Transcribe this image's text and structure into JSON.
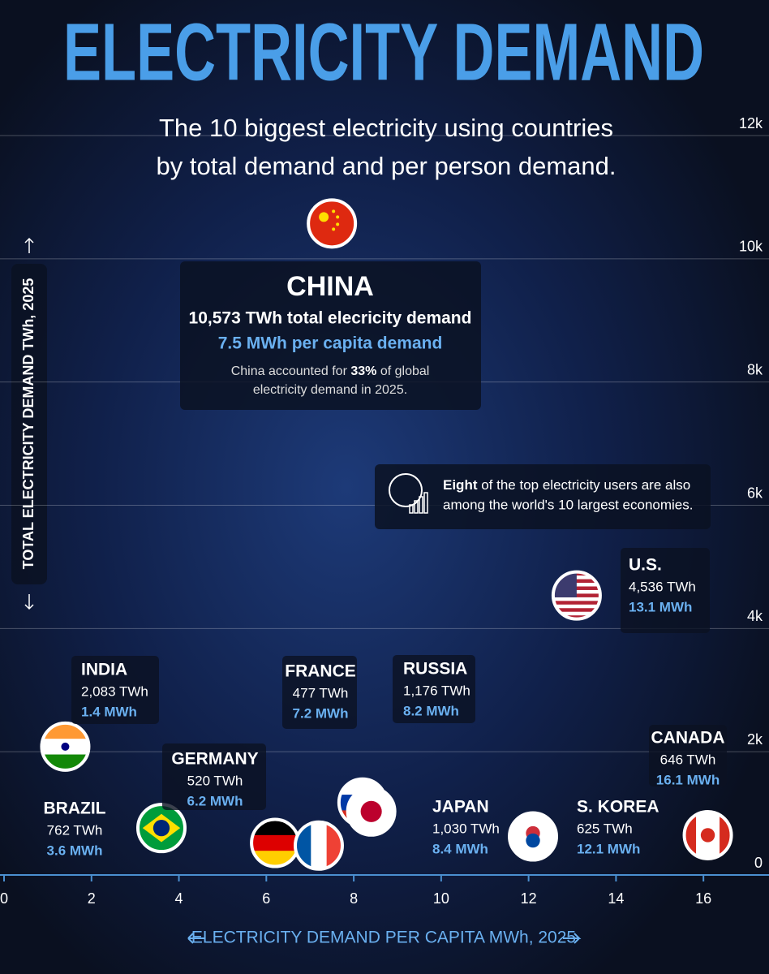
{
  "chart_data": {
    "type": "scatter",
    "title": "ELECTRICITY DEMAND",
    "subtitle": [
      "The 10 biggest electricity using countries",
      "by total demand and per person demand."
    ],
    "x_label": "ELECTRICITY DEMAND PER CAPITA MWh, 2025",
    "y_label": "TOTAL ELECTRICITY DEMAND TWh, 2025",
    "categories": [
      "CHINA",
      "U.S.",
      "INDIA",
      "RUSSIA",
      "JAPAN",
      "BRAZIL",
      "CANADA",
      "S. KOREA",
      "GERMANY",
      "FRANCE"
    ],
    "x": [
      7.5,
      13.1,
      1.4,
      8.2,
      8.4,
      3.6,
      16.1,
      12.1,
      6.2,
      7.2
    ],
    "x_labels": [
      "7.5 MWh per capita demand",
      "13.1 MWh",
      "1.4 MWh",
      "8.2 MWh",
      "8.4 MWh",
      "3.6 MWh",
      "16.1 MWh",
      "12.1 MWh",
      "6.2 MWh",
      "7.2 MWh"
    ],
    "values": [
      10573,
      4536,
      2083,
      1176,
      1030,
      762,
      646,
      625,
      520,
      477
    ],
    "value_labels": [
      "10,573 TWh total elecricity demand",
      "4,536 TWh",
      "2,083 TWh",
      "1,176 TWh",
      "1,030 TWh",
      "762 TWh",
      "646 TWh",
      "625 TWh",
      "520 TWh",
      "477 TWh"
    ],
    "china_note": [
      "China accounted for ",
      "33%",
      " of global",
      "electricity demand in 2025."
    ],
    "economies_note": [
      "Eight",
      " of the top electricity users are also",
      "among the world's 10 largest economies."
    ],
    "xlim": [
      0,
      17.5
    ],
    "ylim": [
      0,
      14200
    ],
    "xticks": [
      0,
      2,
      4,
      6,
      8,
      10,
      12,
      14,
      16
    ],
    "yticks": [
      0,
      {
        "value": 2000,
        "label": "2k"
      },
      {
        "value": 4000,
        "label": "4k"
      },
      {
        "value": 6000,
        "label": "6k"
      },
      {
        "value": 8000,
        "label": "8k"
      },
      {
        "value": 10000,
        "label": "10k"
      },
      {
        "value": 12000,
        "label": "12k"
      }
    ],
    "grid": true,
    "title_color": "#4a9ee8",
    "accent_color": "#6ab0f0"
  }
}
